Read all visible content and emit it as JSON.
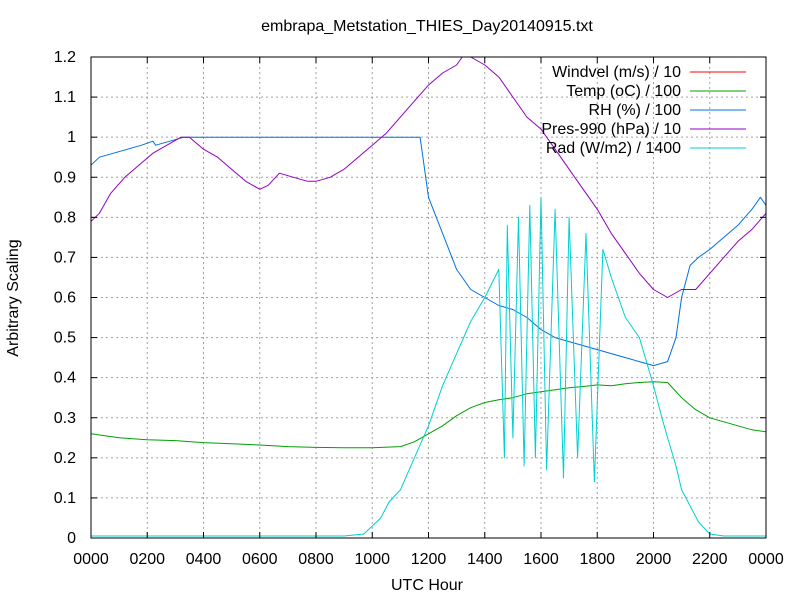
{
  "chart_data": {
    "type": "line",
    "title": "embrapa_Metstation_THIES_Day20140915.txt",
    "xlabel": "UTC Hour",
    "ylabel": "Arbitrary Scaling",
    "xlim": [
      0,
      24
    ],
    "ylim": [
      0,
      1.2
    ],
    "grid": true,
    "legend_position": "top-right",
    "x_ticks": [
      "0000",
      "0200",
      "0400",
      "0600",
      "0800",
      "1000",
      "1200",
      "1400",
      "1600",
      "1800",
      "2000",
      "2200",
      "0000"
    ],
    "y_ticks": [
      "0",
      "0.1",
      "0.2",
      "0.3",
      "0.4",
      "0.5",
      "0.6",
      "0.7",
      "0.8",
      "0.9",
      "1",
      "1.1",
      "1.2"
    ],
    "series": [
      {
        "name": "Windvel (m/s) / 10",
        "color": "#ff0000",
        "x": [],
        "y": []
      },
      {
        "name": "Temp (oC) / 100",
        "color": "#00a000",
        "x": [
          0,
          1,
          2,
          3,
          4,
          5,
          6,
          7,
          8,
          9,
          10,
          11,
          11.5,
          12,
          12.5,
          13,
          13.5,
          14,
          14.5,
          15,
          15.5,
          16,
          16.5,
          17,
          17.5,
          18,
          18.5,
          19,
          19.5,
          20,
          20.5,
          21,
          21.5,
          22,
          22.5,
          23,
          23.5,
          24
        ],
        "y": [
          0.26,
          0.25,
          0.245,
          0.243,
          0.238,
          0.235,
          0.232,
          0.228,
          0.226,
          0.225,
          0.225,
          0.228,
          0.24,
          0.26,
          0.28,
          0.305,
          0.325,
          0.338,
          0.345,
          0.35,
          0.36,
          0.365,
          0.37,
          0.375,
          0.378,
          0.382,
          0.38,
          0.385,
          0.388,
          0.39,
          0.388,
          0.35,
          0.32,
          0.3,
          0.29,
          0.28,
          0.27,
          0.265
        ]
      },
      {
        "name": "RH (%) / 100",
        "color": "#0070e0",
        "x": [
          0,
          0.3,
          0.8,
          1.3,
          1.8,
          2.2,
          2.3,
          2.8,
          3.3,
          4,
          5,
          6,
          7,
          8,
          9,
          10,
          11,
          11.7,
          12,
          12.5,
          13,
          13.5,
          14,
          14.5,
          15,
          15.5,
          16,
          16.5,
          17,
          17.5,
          18,
          18.5,
          19,
          19.5,
          20,
          20.5,
          20.8,
          21,
          21.3,
          21.6,
          22,
          22.5,
          23,
          23.5,
          23.8,
          24
        ],
        "y": [
          0.93,
          0.95,
          0.96,
          0.97,
          0.98,
          0.99,
          0.98,
          0.99,
          1.0,
          1.0,
          1.0,
          1.0,
          1.0,
          1.0,
          1.0,
          1.0,
          1.0,
          1.0,
          0.85,
          0.76,
          0.67,
          0.62,
          0.6,
          0.58,
          0.57,
          0.55,
          0.52,
          0.5,
          0.49,
          0.48,
          0.47,
          0.46,
          0.45,
          0.44,
          0.43,
          0.44,
          0.5,
          0.6,
          0.68,
          0.7,
          0.72,
          0.75,
          0.78,
          0.82,
          0.85,
          0.83
        ]
      },
      {
        "name": "Pres-990 (hPa) / 10",
        "color": "#9000c0",
        "x": [
          0,
          0.3,
          0.7,
          1.2,
          1.7,
          2.2,
          2.7,
          3.2,
          3.5,
          4,
          4.5,
          5,
          5.5,
          6,
          6.3,
          6.7,
          7.2,
          7.7,
          8,
          8.5,
          9,
          9.5,
          10,
          10.5,
          11,
          11.5,
          12,
          12.5,
          13,
          13.2,
          13.5,
          14,
          14.5,
          15,
          15.5,
          16,
          16.5,
          17,
          17.5,
          18,
          18.5,
          19,
          19.5,
          20,
          20.5,
          21,
          21.5,
          22,
          22.5,
          23,
          23.5,
          24
        ],
        "y": [
          0.79,
          0.81,
          0.86,
          0.9,
          0.93,
          0.96,
          0.98,
          1.0,
          1.0,
          0.97,
          0.95,
          0.92,
          0.89,
          0.87,
          0.88,
          0.91,
          0.9,
          0.89,
          0.89,
          0.9,
          0.92,
          0.95,
          0.98,
          1.01,
          1.05,
          1.09,
          1.13,
          1.16,
          1.18,
          1.2,
          1.2,
          1.18,
          1.15,
          1.1,
          1.05,
          1.02,
          0.97,
          0.92,
          0.87,
          0.82,
          0.76,
          0.71,
          0.66,
          0.62,
          0.6,
          0.62,
          0.62,
          0.66,
          0.7,
          0.74,
          0.77,
          0.81
        ]
      },
      {
        "name": "Rad (W/m2) / 1400",
        "color": "#00d0d0",
        "x": [
          0,
          2,
          4,
          6,
          8,
          9,
          9.7,
          10,
          10.3,
          10.6,
          11,
          11.5,
          12,
          12.5,
          13,
          13.5,
          14,
          14.5,
          14.7,
          14.8,
          15,
          15.2,
          15.4,
          15.6,
          15.8,
          16,
          16.2,
          16.5,
          16.8,
          17,
          17.3,
          17.6,
          17.9,
          18.2,
          18.5,
          19,
          19.5,
          20,
          20.3,
          20.5,
          20.8,
          21,
          21.3,
          21.6,
          22,
          22.5,
          23,
          24
        ],
        "y": [
          0.005,
          0.005,
          0.005,
          0.005,
          0.005,
          0.005,
          0.01,
          0.03,
          0.05,
          0.09,
          0.12,
          0.2,
          0.28,
          0.38,
          0.46,
          0.54,
          0.6,
          0.67,
          0.2,
          0.78,
          0.25,
          0.8,
          0.18,
          0.83,
          0.2,
          0.85,
          0.17,
          0.82,
          0.15,
          0.8,
          0.2,
          0.76,
          0.14,
          0.72,
          0.65,
          0.55,
          0.5,
          0.38,
          0.3,
          0.25,
          0.18,
          0.12,
          0.08,
          0.04,
          0.01,
          0.005,
          0.005,
          0.005
        ]
      }
    ]
  }
}
